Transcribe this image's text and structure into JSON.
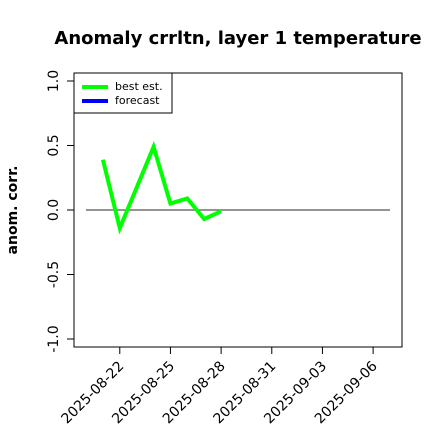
{
  "chart_data": {
    "type": "line",
    "title": "Anomaly crrltn, layer 1 temperature",
    "xlabel": "",
    "ylabel": "anom. corr.",
    "ylim": [
      -1.0,
      1.0
    ],
    "xlim": [
      "2025-08-20",
      "2025-09-07"
    ],
    "yticks": [
      "-1.0",
      "-0.5",
      "0.0",
      "0.5",
      "1.0"
    ],
    "xticks": [
      {
        "label": "2025-08-22",
        "color": "#000000"
      },
      {
        "label": "2025-08-25",
        "color": "#000000"
      },
      {
        "label": "2025-08-28",
        "color": "#228B22"
      },
      {
        "label": "2025-08-31",
        "color": "#000000"
      },
      {
        "label": "2025-09-03",
        "color": "#000000"
      },
      {
        "label": "2025-09-06",
        "color": "#000000"
      }
    ],
    "reference_line": {
      "y": 0.0,
      "color": "#555555"
    },
    "legend_position": "top-left",
    "series": [
      {
        "name": "best est.",
        "color": "#00ff00",
        "x": [
          "2025-08-21",
          "2025-08-22",
          "2025-08-24",
          "2025-08-25",
          "2025-08-26",
          "2025-08-27",
          "2025-08-28"
        ],
        "values": [
          0.39,
          -0.14,
          0.49,
          0.05,
          0.09,
          -0.07,
          -0.01
        ]
      },
      {
        "name": "forecast",
        "color": "#0000ff",
        "x": [],
        "values": []
      }
    ]
  }
}
